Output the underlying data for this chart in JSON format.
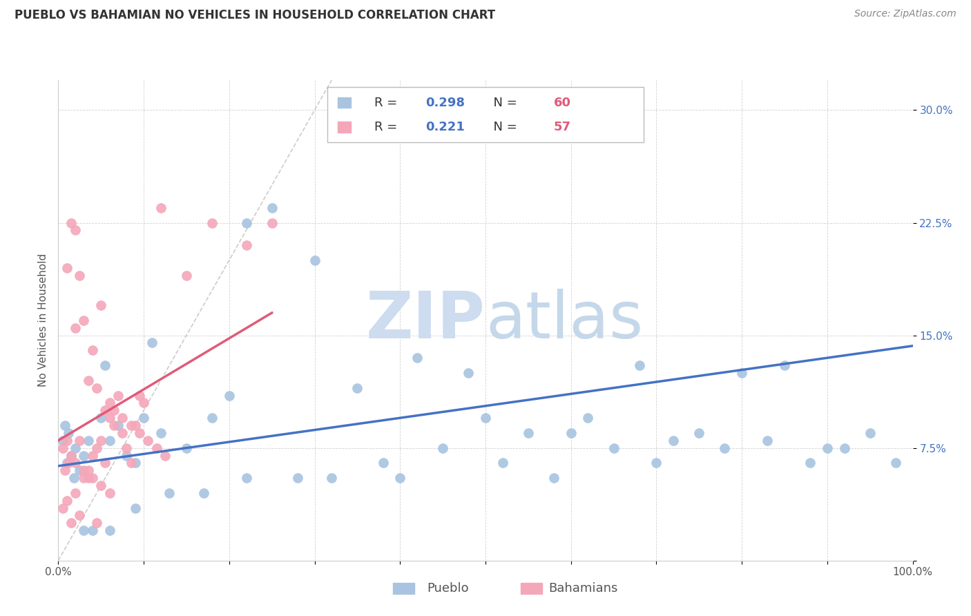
{
  "title": "PUEBLO VS BAHAMIAN NO VEHICLES IN HOUSEHOLD CORRELATION CHART",
  "source": "Source: ZipAtlas.com",
  "ylabel": "No Vehicles in Household",
  "xlim": [
    0,
    1.0
  ],
  "ylim": [
    0,
    0.32
  ],
  "xticks": [
    0.0,
    0.1,
    0.2,
    0.3,
    0.4,
    0.5,
    0.6,
    0.7,
    0.8,
    0.9,
    1.0
  ],
  "xtick_labels": [
    "0.0%",
    "",
    "",
    "",
    "",
    "",
    "",
    "",
    "",
    "",
    "100.0%"
  ],
  "ytick_labels": [
    "",
    "7.5%",
    "15.0%",
    "22.5%",
    "30.0%"
  ],
  "yticks": [
    0.0,
    0.075,
    0.15,
    0.225,
    0.3
  ],
  "pueblo_R": "0.298",
  "pueblo_N": "60",
  "bahamian_R": "0.221",
  "bahamian_N": "57",
  "pueblo_color": "#a8c4e0",
  "bahamian_color": "#f4a7b9",
  "pueblo_line_color": "#4472c4",
  "bahamian_line_color": "#e05a7a",
  "diagonal_color": "#cccccc",
  "pueblo_points_x": [
    0.02,
    0.03,
    0.01,
    0.005,
    0.015,
    0.025,
    0.008,
    0.012,
    0.018,
    0.035,
    0.05,
    0.07,
    0.06,
    0.08,
    0.09,
    0.1,
    0.12,
    0.15,
    0.18,
    0.2,
    0.22,
    0.25,
    0.3,
    0.35,
    0.4,
    0.45,
    0.5,
    0.55,
    0.6,
    0.65,
    0.7,
    0.75,
    0.8,
    0.85,
    0.9,
    0.92,
    0.95,
    0.98,
    0.88,
    0.83,
    0.78,
    0.72,
    0.68,
    0.62,
    0.58,
    0.52,
    0.48,
    0.42,
    0.38,
    0.32,
    0.28,
    0.22,
    0.17,
    0.13,
    0.09,
    0.06,
    0.04,
    0.03,
    0.055,
    0.11
  ],
  "pueblo_points_y": [
    0.075,
    0.07,
    0.065,
    0.08,
    0.07,
    0.06,
    0.09,
    0.085,
    0.055,
    0.08,
    0.095,
    0.09,
    0.08,
    0.07,
    0.065,
    0.095,
    0.085,
    0.075,
    0.095,
    0.11,
    0.225,
    0.235,
    0.2,
    0.115,
    0.055,
    0.075,
    0.095,
    0.085,
    0.085,
    0.075,
    0.065,
    0.085,
    0.125,
    0.13,
    0.075,
    0.075,
    0.085,
    0.065,
    0.065,
    0.08,
    0.075,
    0.08,
    0.13,
    0.095,
    0.055,
    0.065,
    0.125,
    0.135,
    0.065,
    0.055,
    0.055,
    0.055,
    0.045,
    0.045,
    0.035,
    0.02,
    0.02,
    0.02,
    0.13,
    0.145
  ],
  "bahamian_points_x": [
    0.005,
    0.008,
    0.01,
    0.012,
    0.015,
    0.02,
    0.025,
    0.03,
    0.035,
    0.04,
    0.045,
    0.05,
    0.055,
    0.06,
    0.065,
    0.07,
    0.075,
    0.08,
    0.085,
    0.09,
    0.095,
    0.1,
    0.12,
    0.15,
    0.18,
    0.22,
    0.25,
    0.02,
    0.03,
    0.04,
    0.05,
    0.06,
    0.02,
    0.015,
    0.01,
    0.025,
    0.035,
    0.045,
    0.055,
    0.065,
    0.075,
    0.085,
    0.095,
    0.105,
    0.115,
    0.125,
    0.005,
    0.01,
    0.02,
    0.03,
    0.04,
    0.05,
    0.06,
    0.015,
    0.025,
    0.035,
    0.045
  ],
  "bahamian_points_y": [
    0.075,
    0.06,
    0.08,
    0.065,
    0.07,
    0.065,
    0.08,
    0.055,
    0.06,
    0.07,
    0.075,
    0.08,
    0.065,
    0.095,
    0.09,
    0.11,
    0.085,
    0.075,
    0.065,
    0.09,
    0.11,
    0.105,
    0.235,
    0.19,
    0.225,
    0.21,
    0.225,
    0.155,
    0.16,
    0.14,
    0.17,
    0.105,
    0.22,
    0.225,
    0.195,
    0.19,
    0.12,
    0.115,
    0.1,
    0.1,
    0.095,
    0.09,
    0.085,
    0.08,
    0.075,
    0.07,
    0.035,
    0.04,
    0.045,
    0.06,
    0.055,
    0.05,
    0.045,
    0.025,
    0.03,
    0.055,
    0.025
  ],
  "pueblo_line_x": [
    0.0,
    1.0
  ],
  "pueblo_line_y": [
    0.063,
    0.143
  ],
  "bahamian_line_x": [
    0.0,
    0.25
  ],
  "bahamian_line_y": [
    0.08,
    0.165
  ],
  "diagonal_line_x": [
    0.0,
    0.32
  ],
  "diagonal_line_y": [
    0.0,
    0.32
  ]
}
